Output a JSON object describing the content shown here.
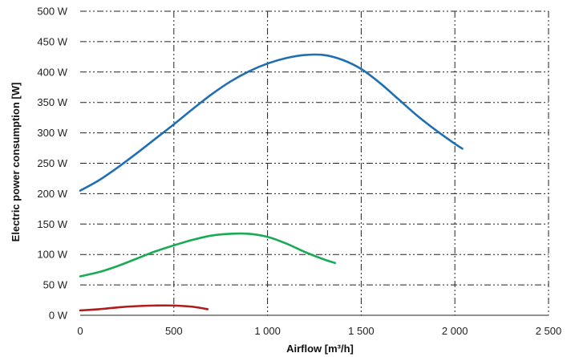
{
  "chart_data": {
    "type": "line",
    "title": "",
    "xlabel": "Airflow [m³/h]",
    "ylabel": "Electric power consumption [W]",
    "xlim": [
      0,
      2500
    ],
    "ylim": [
      0,
      500
    ],
    "x_ticks": [
      0,
      500,
      1000,
      1500,
      2000,
      2500
    ],
    "x_tick_labels": [
      "0",
      "500",
      "1 000",
      "1 500",
      "2 000",
      "2 500"
    ],
    "y_ticks": [
      0,
      50,
      100,
      150,
      200,
      250,
      300,
      350,
      400,
      450,
      500
    ],
    "y_tick_labels": [
      "0 W",
      "50 W",
      "100 W",
      "150 W",
      "200 W",
      "250 W",
      "300 W",
      "350 W",
      "400 W",
      "450 W",
      "500 W"
    ],
    "grid": true,
    "legend": "none",
    "series": [
      {
        "color": "#1f6fb2",
        "x": [
          0,
          100,
          200,
          300,
          400,
          500,
          600,
          700,
          800,
          900,
          1000,
          1100,
          1200,
          1300,
          1400,
          1500,
          1600,
          1700,
          1800,
          1900,
          2000,
          2040
        ],
        "y": [
          205,
          222,
          243,
          266,
          290,
          314,
          339,
          363,
          384,
          401,
          414,
          423,
          428,
          428,
          420,
          405,
          382,
          355,
          328,
          304,
          282,
          274
        ]
      },
      {
        "color": "#1aaa55",
        "x": [
          0,
          100,
          200,
          300,
          400,
          500,
          600,
          700,
          800,
          900,
          1000,
          1100,
          1200,
          1300,
          1360
        ],
        "y": [
          64,
          71,
          81,
          93,
          105,
          115,
          124,
          131,
          134,
          134,
          129,
          118,
          104,
          92,
          86
        ]
      },
      {
        "color": "#b01c1c",
        "x": [
          0,
          100,
          200,
          300,
          400,
          500,
          600,
          680
        ],
        "y": [
          8,
          10,
          13,
          15,
          16,
          16,
          14,
          10
        ]
      }
    ]
  }
}
